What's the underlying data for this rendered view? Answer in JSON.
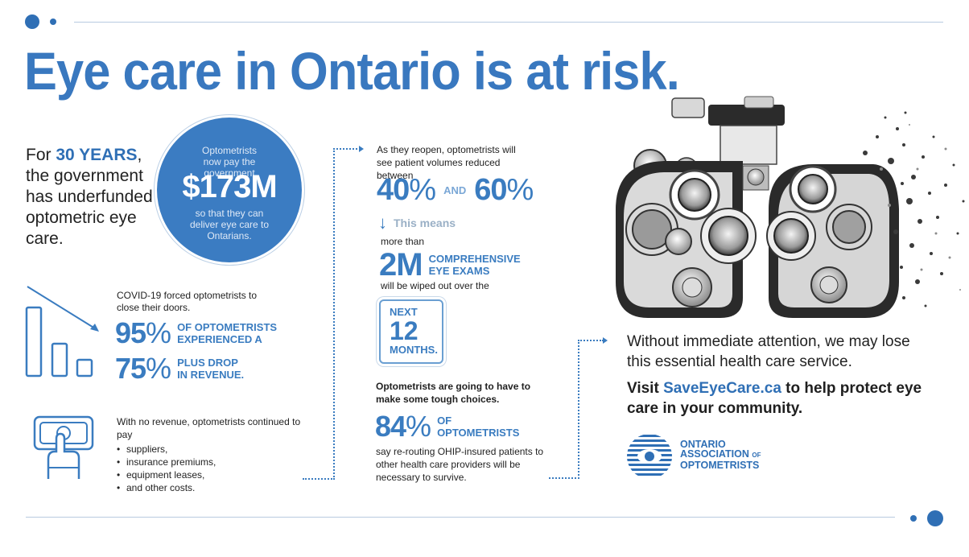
{
  "headline": "Eye care in Ontario is at risk.",
  "underfunded": {
    "prefix": "For ",
    "highlight": "30 YEARS",
    "suffix": ",",
    "rest": "the government has underfunded optometric eye care."
  },
  "circle": {
    "line1": "Optometrists now pay the government",
    "amount": "$173M",
    "line2": "so that they can deliver eye care to Ontarians."
  },
  "covid": {
    "text": "COVID-19 forced optometrists to close their doors.",
    "stat1": {
      "value": "95",
      "symbol": "%",
      "label_line1": "OF OPTOMETRISTS",
      "label_line2": "EXPERIENCED A"
    },
    "stat2": {
      "value": "75",
      "symbol": "%",
      "label_line1": "PLUS DROP",
      "label_line2": "IN REVENUE."
    }
  },
  "payments": {
    "intro": "With no revenue, optometrists continued to pay",
    "items": [
      "suppliers,",
      "insurance premiums,",
      "equipment leases,",
      "and other costs."
    ]
  },
  "reopen": {
    "text": "As they reopen, optometrists will see patient volumes reduced between",
    "low": "40",
    "and": "AND",
    "high": "60",
    "symbol": "%",
    "means": "This means",
    "more_than": "more than",
    "exams_value": "2M",
    "exams_line1": "COMPREHENSIVE",
    "exams_line2": "EYE EXAMS",
    "wiped": "will be wiped out over the",
    "next_line1": "NEXT",
    "next_value": "12",
    "next_line3": "MONTHS."
  },
  "choices": {
    "text": "Optometrists are going to have to make some tough choices.",
    "value": "84",
    "symbol": "%",
    "label_line1": "OF",
    "label_line2": "OPTOMETRISTS",
    "detail": "say re-routing OHIP-insured patients to other health care providers will be necessary to survive."
  },
  "closing": {
    "without": "Without immediate attention, we may lose this essential health care service.",
    "visit_prefix": "Visit ",
    "visit_link": "SaveEyeCare.ca",
    "visit_suffix": " to help protect eye care in your community."
  },
  "logo": {
    "line1": "ONTARIO",
    "line2a": "ASSOCIATION",
    "line2b": "OF",
    "line3": "OPTOMETRISTS"
  },
  "colors": {
    "primary_blue": "#3a7cc0",
    "circle_blue": "#3b7cc2",
    "text_dark": "#1f1f1f"
  }
}
